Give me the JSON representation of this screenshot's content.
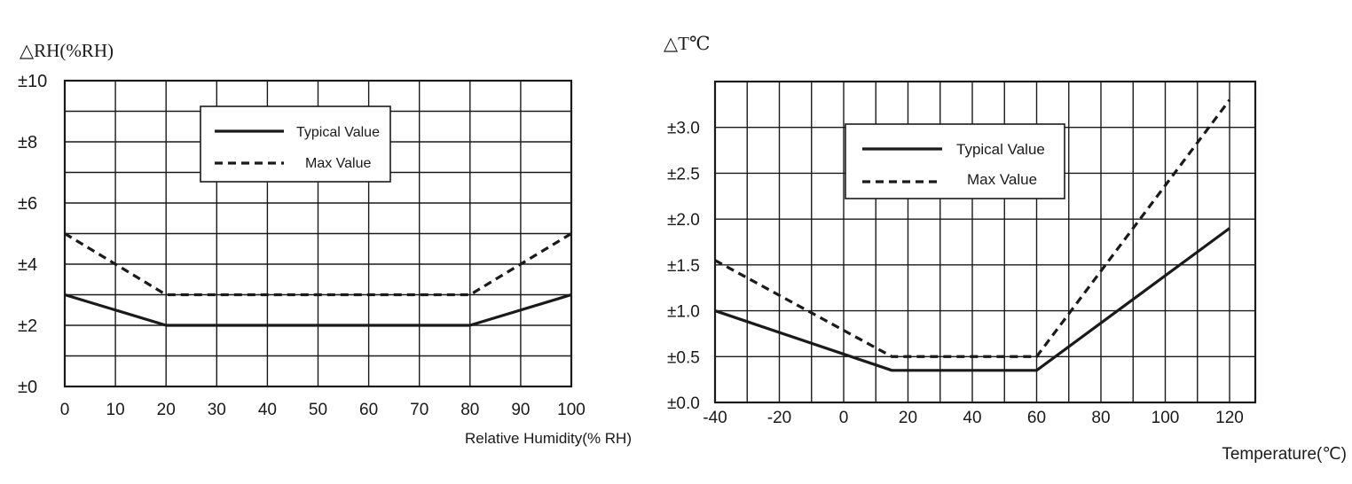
{
  "chart_data": [
    {
      "type": "line",
      "ylabel": "△RH(%RH)",
      "xlabel": "Relative Humidity(% RH)",
      "x_ticks": [
        "0",
        "10",
        "20",
        "30",
        "40",
        "50",
        "60",
        "70",
        "80",
        "90",
        "100"
      ],
      "y_ticks": [
        "±0",
        "±2",
        "±4",
        "±6",
        "±8",
        "±10"
      ],
      "xlim": [
        0,
        100
      ],
      "ylim": [
        0,
        10
      ],
      "grid": true,
      "legend": "top-center",
      "series": [
        {
          "name": "Typical Value",
          "style": "solid",
          "x": [
            0,
            20,
            80,
            100
          ],
          "y": [
            3,
            2,
            2,
            3
          ]
        },
        {
          "name": "Max Value",
          "style": "dashed",
          "x": [
            0,
            20,
            80,
            100
          ],
          "y": [
            5,
            3,
            3,
            5
          ]
        }
      ]
    },
    {
      "type": "line",
      "ylabel": "△T℃",
      "xlabel": "Temperature(℃)",
      "x_ticks": [
        "-40",
        "-20",
        "0",
        "20",
        "40",
        "60",
        "80",
        "100",
        "120"
      ],
      "y_ticks": [
        "±0.0",
        "±0.5",
        "±1.0",
        "±1.5",
        "±2.0",
        "±2.5",
        "±3.0"
      ],
      "xlim": [
        -40,
        128
      ],
      "ylim": [
        0,
        3.5
      ],
      "grid": true,
      "legend": "top-center",
      "series": [
        {
          "name": "Typical Value",
          "style": "solid",
          "x": [
            -40,
            15,
            60,
            120
          ],
          "y": [
            1.0,
            0.35,
            0.35,
            1.9
          ]
        },
        {
          "name": "Max Value",
          "style": "dashed",
          "x": [
            -40,
            15,
            60,
            120
          ],
          "y": [
            1.55,
            0.5,
            0.5,
            3.3
          ]
        }
      ]
    }
  ]
}
